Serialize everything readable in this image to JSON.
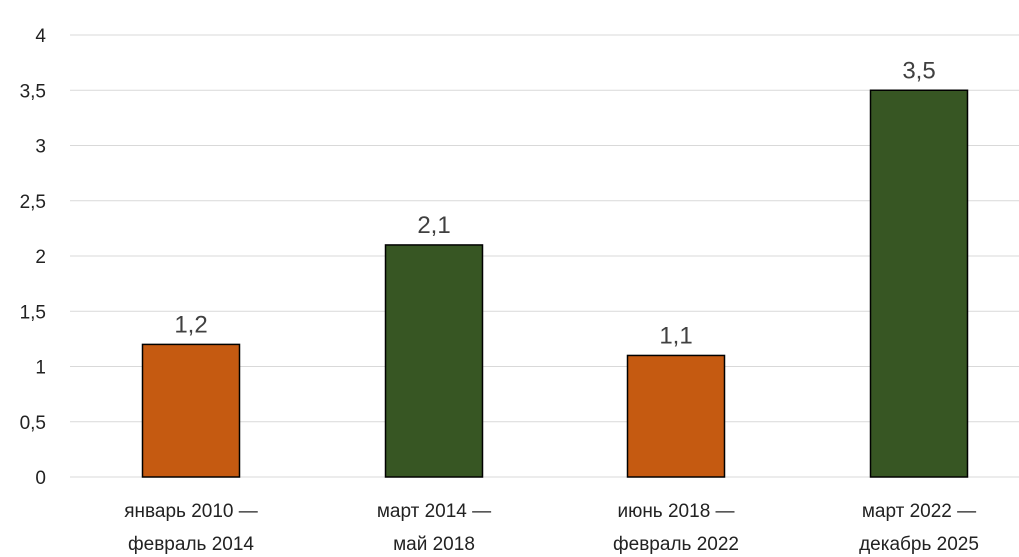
{
  "chart_data": {
    "type": "bar",
    "categories": [
      [
        "январь 2010 —",
        "февраль 2014"
      ],
      [
        "март 2014 —",
        "май 2018"
      ],
      [
        "июнь 2018 —",
        "февраль 2022"
      ],
      [
        "март 2022 —",
        "декабрь 2025"
      ]
    ],
    "values": [
      1.2,
      2.1,
      1.1,
      3.5
    ],
    "data_labels": [
      "1,2",
      "2,1",
      "1,1",
      "3,5"
    ],
    "colors": [
      "#c55a11",
      "#375623",
      "#c55a11",
      "#375623"
    ],
    "ylim": [
      0,
      4
    ],
    "yticks": [
      0,
      0.5,
      1,
      1.5,
      2,
      2.5,
      3,
      3.5,
      4
    ],
    "ytick_labels": [
      "0",
      "0,5",
      "1",
      "1,5",
      "2",
      "2,5",
      "3",
      "3,5",
      "4"
    ],
    "grid": true,
    "legend": "none",
    "title": "",
    "xlabel": "",
    "ylabel": ""
  }
}
